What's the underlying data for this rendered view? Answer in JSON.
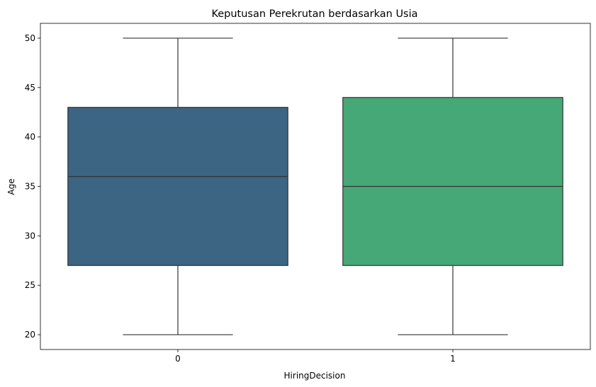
{
  "chart_data": {
    "type": "box",
    "title": "Keputusan Perekrutan berdasarkan Usia",
    "xlabel": "HiringDecision",
    "ylabel": "Age",
    "ylim": [
      18.5,
      51.5
    ],
    "yticks": [
      20,
      25,
      30,
      35,
      40,
      45,
      50
    ],
    "grid": false,
    "legend": "none",
    "categories": [
      "0",
      "1"
    ],
    "boxes": [
      {
        "category": "0",
        "whisker_low": 20,
        "q1": 27,
        "median": 36,
        "q3": 43,
        "whisker_high": 50,
        "color": "#3b6582"
      },
      {
        "category": "1",
        "whisker_low": 20,
        "q1": 27,
        "median": 35,
        "q3": 44,
        "whisker_high": 50,
        "color": "#46a877"
      }
    ],
    "line_color": "#333333"
  }
}
